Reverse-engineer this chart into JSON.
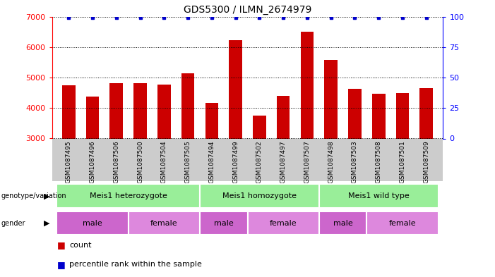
{
  "title": "GDS5300 / ILMN_2674979",
  "samples": [
    "GSM1087495",
    "GSM1087496",
    "GSM1087506",
    "GSM1087500",
    "GSM1087504",
    "GSM1087505",
    "GSM1087494",
    "GSM1087499",
    "GSM1087502",
    "GSM1087497",
    "GSM1087507",
    "GSM1087498",
    "GSM1087503",
    "GSM1087508",
    "GSM1087501",
    "GSM1087509"
  ],
  "counts": [
    4750,
    4380,
    4820,
    4820,
    4780,
    5130,
    4160,
    6230,
    3750,
    4390,
    6510,
    5580,
    4630,
    4480,
    4500,
    4660
  ],
  "percentiles": [
    99,
    99,
    99,
    99,
    99,
    99,
    99,
    99,
    99,
    99,
    99,
    99,
    99,
    99,
    99,
    99
  ],
  "ylim_left": [
    3000,
    7000
  ],
  "ylim_right": [
    0,
    100
  ],
  "yticks_left": [
    3000,
    4000,
    5000,
    6000,
    7000
  ],
  "yticks_right": [
    0,
    25,
    50,
    75,
    100
  ],
  "bar_color": "#cc0000",
  "dot_color": "#0000cc",
  "bg_color": "#ffffff",
  "label_bg_color": "#cccccc",
  "genotype_color": "#99ee99",
  "gender_male_color": "#cc66cc",
  "gender_female_color": "#dd88dd",
  "genotype_groups": [
    {
      "label": "Meis1 heterozygote",
      "start": 0,
      "end": 5
    },
    {
      "label": "Meis1 homozygote",
      "start": 6,
      "end": 10
    },
    {
      "label": "Meis1 wild type",
      "start": 11,
      "end": 15
    }
  ],
  "gender_groups": [
    {
      "label": "male",
      "start": 0,
      "end": 2,
      "color": "#cc66cc"
    },
    {
      "label": "female",
      "start": 3,
      "end": 5,
      "color": "#dd88dd"
    },
    {
      "label": "male",
      "start": 6,
      "end": 7,
      "color": "#cc66cc"
    },
    {
      "label": "female",
      "start": 8,
      "end": 10,
      "color": "#dd88dd"
    },
    {
      "label": "male",
      "start": 11,
      "end": 12,
      "color": "#cc66cc"
    },
    {
      "label": "female",
      "start": 13,
      "end": 15,
      "color": "#dd88dd"
    }
  ]
}
